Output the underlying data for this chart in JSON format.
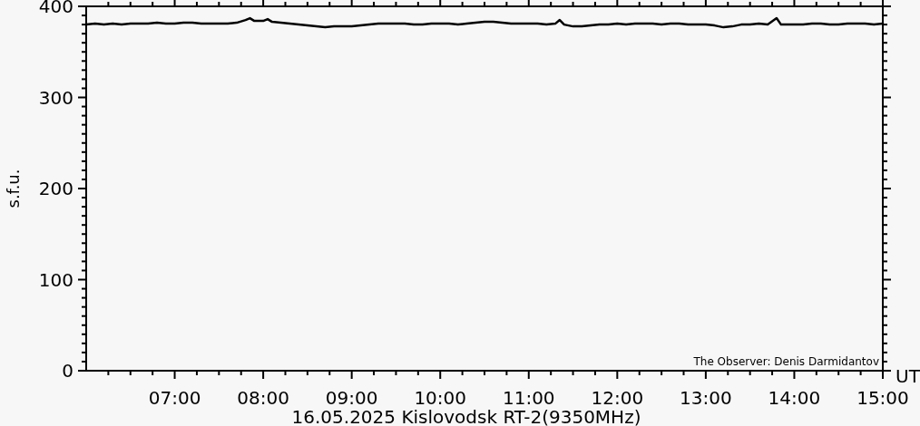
{
  "chart_data": {
    "type": "line",
    "xlabel": "16.05.2025 Kislovodsk RT-2(9350MHz)",
    "ylabel": "s.f.u.",
    "annotations": [
      "UT",
      "The Observer: Denis Darmidantov"
    ],
    "xlim": [
      6,
      15
    ],
    "ylim": [
      0,
      400
    ],
    "xticks": [
      {
        "value": 6.25,
        "label": null
      },
      {
        "value": 6.5,
        "label": null
      },
      {
        "value": 6.75,
        "label": null
      },
      {
        "value": 7,
        "label": "07:00"
      },
      {
        "value": 7.25,
        "label": null
      },
      {
        "value": 7.5,
        "label": null
      },
      {
        "value": 7.75,
        "label": null
      },
      {
        "value": 8,
        "label": "08:00"
      },
      {
        "value": 8.25,
        "label": null
      },
      {
        "value": 8.5,
        "label": null
      },
      {
        "value": 8.75,
        "label": null
      },
      {
        "value": 9,
        "label": "09:00"
      },
      {
        "value": 9.25,
        "label": null
      },
      {
        "value": 9.5,
        "label": null
      },
      {
        "value": 9.75,
        "label": null
      },
      {
        "value": 10,
        "label": "10:00"
      },
      {
        "value": 10.25,
        "label": null
      },
      {
        "value": 10.5,
        "label": null
      },
      {
        "value": 10.75,
        "label": null
      },
      {
        "value": 11,
        "label": "11:00"
      },
      {
        "value": 11.25,
        "label": null
      },
      {
        "value": 11.5,
        "label": null
      },
      {
        "value": 11.75,
        "label": null
      },
      {
        "value": 12,
        "label": "12:00"
      },
      {
        "value": 12.25,
        "label": null
      },
      {
        "value": 12.5,
        "label": null
      },
      {
        "value": 12.75,
        "label": null
      },
      {
        "value": 13,
        "label": "13:00"
      },
      {
        "value": 13.25,
        "label": null
      },
      {
        "value": 13.5,
        "label": null
      },
      {
        "value": 13.75,
        "label": null
      },
      {
        "value": 14,
        "label": "14:00"
      },
      {
        "value": 14.25,
        "label": null
      },
      {
        "value": 14.5,
        "label": null
      },
      {
        "value": 14.75,
        "label": null
      },
      {
        "value": 15,
        "label": "15:00"
      }
    ],
    "yticks": [
      0,
      {
        "value": 10,
        "label": null
      },
      {
        "value": 20,
        "label": null
      },
      {
        "value": 30,
        "label": null
      },
      {
        "value": 40,
        "label": null
      },
      {
        "value": 50,
        "label": null
      },
      {
        "value": 60,
        "label": null
      },
      {
        "value": 70,
        "label": null
      },
      {
        "value": 80,
        "label": null
      },
      {
        "value": 90,
        "label": null
      },
      100,
      {
        "value": 110,
        "label": null
      },
      {
        "value": 120,
        "label": null
      },
      {
        "value": 130,
        "label": null
      },
      {
        "value": 140,
        "label": null
      },
      {
        "value": 150,
        "label": null
      },
      {
        "value": 160,
        "label": null
      },
      {
        "value": 170,
        "label": null
      },
      {
        "value": 180,
        "label": null
      },
      {
        "value": 190,
        "label": null
      },
      200,
      {
        "value": 210,
        "label": null
      },
      {
        "value": 220,
        "label": null
      },
      {
        "value": 230,
        "label": null
      },
      {
        "value": 240,
        "label": null
      },
      {
        "value": 250,
        "label": null
      },
      {
        "value": 260,
        "label": null
      },
      {
        "value": 270,
        "label": null
      },
      {
        "value": 280,
        "label": null
      },
      {
        "value": 290,
        "label": null
      },
      300,
      {
        "value": 310,
        "label": null
      },
      {
        "value": 320,
        "label": null
      },
      {
        "value": 330,
        "label": null
      },
      {
        "value": 340,
        "label": null
      },
      {
        "value": 350,
        "label": null
      },
      {
        "value": 360,
        "label": null
      },
      {
        "value": 370,
        "label": null
      },
      {
        "value": 380,
        "label": null
      },
      {
        "value": 390,
        "label": null
      },
      400
    ],
    "series": [
      {
        "color": "#000000",
        "x": [
          6.0,
          6.1,
          6.2,
          6.3,
          6.4,
          6.5,
          6.6,
          6.7,
          6.8,
          6.9,
          7.0,
          7.1,
          7.2,
          7.3,
          7.4,
          7.5,
          7.6,
          7.7,
          7.8,
          7.85,
          7.9,
          8.0,
          8.05,
          8.1,
          8.2,
          8.3,
          8.4,
          8.5,
          8.6,
          8.7,
          8.8,
          8.9,
          9.0,
          9.1,
          9.2,
          9.3,
          9.4,
          9.5,
          9.6,
          9.7,
          9.8,
          9.9,
          10.0,
          10.1,
          10.2,
          10.3,
          10.4,
          10.5,
          10.6,
          10.7,
          10.8,
          10.9,
          11.0,
          11.1,
          11.2,
          11.3,
          11.35,
          11.4,
          11.5,
          11.6,
          11.7,
          11.8,
          11.9,
          12.0,
          12.1,
          12.2,
          12.3,
          12.4,
          12.5,
          12.6,
          12.7,
          12.8,
          12.9,
          13.0,
          13.1,
          13.2,
          13.3,
          13.4,
          13.5,
          13.6,
          13.7,
          13.8,
          13.85,
          13.9,
          14.0,
          14.1,
          14.2,
          14.3,
          14.4,
          14.5,
          14.6,
          14.7,
          14.8,
          14.9,
          15.0
        ],
        "values": [
          380,
          381,
          380,
          381,
          380,
          381,
          381,
          381,
          382,
          381,
          381,
          382,
          382,
          381,
          381,
          381,
          381,
          382,
          385,
          387,
          384,
          384,
          386,
          383,
          382,
          381,
          380,
          379,
          378,
          377,
          378,
          378,
          378,
          379,
          380,
          381,
          381,
          381,
          381,
          380,
          380,
          381,
          381,
          381,
          380,
          381,
          382,
          383,
          383,
          382,
          381,
          381,
          381,
          381,
          380,
          381,
          385,
          380,
          378,
          378,
          379,
          380,
          380,
          381,
          380,
          381,
          381,
          381,
          380,
          381,
          381,
          380,
          380,
          380,
          379,
          377,
          378,
          380,
          380,
          381,
          380,
          387,
          380,
          380,
          380,
          380,
          381,
          381,
          380,
          380,
          381,
          381,
          381,
          380,
          381
        ]
      }
    ]
  }
}
